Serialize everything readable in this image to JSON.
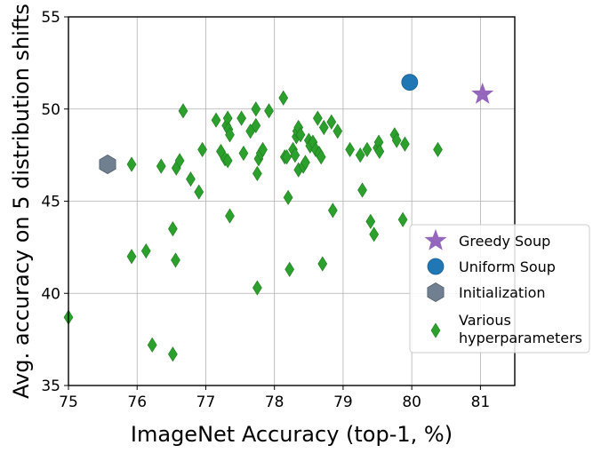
{
  "chart_data": {
    "type": "scatter",
    "xlabel": "ImageNet Accuracy (top-1, %)",
    "ylabel": "Avg. accuracy on 5 distribution shifts",
    "xlim": [
      75,
      81.5
    ],
    "ylim": [
      35,
      55
    ],
    "xticks": [
      "75",
      "76",
      "77",
      "78",
      "79",
      "80",
      "81"
    ],
    "yticks": [
      "35",
      "40",
      "45",
      "50",
      "55"
    ],
    "grid": true,
    "legend_position": "right",
    "legend_labels": {
      "greedy": "Greedy Soup",
      "uniform": "Uniform Soup",
      "init": "Initialization",
      "various_line1": "Various",
      "various_line2": "hyperparameters"
    },
    "colors": {
      "greedy": "#9467bd",
      "uniform": "#1f77b4",
      "init": "#708090",
      "various": "#2ca02c"
    },
    "series": [
      {
        "name": "Greedy Soup",
        "marker": "star",
        "points": [
          [
            81.03,
            50.8
          ]
        ]
      },
      {
        "name": "Uniform Soup",
        "marker": "circle",
        "points": [
          [
            79.97,
            51.45
          ]
        ]
      },
      {
        "name": "Initialization",
        "marker": "hexagon",
        "points": [
          [
            75.57,
            47.0
          ]
        ]
      },
      {
        "name": "Various hyperparameters",
        "marker": "thin_diamond",
        "points": [
          [
            75.0,
            38.7
          ],
          [
            75.92,
            47.0
          ],
          [
            75.92,
            42.0
          ],
          [
            76.13,
            42.3
          ],
          [
            76.22,
            37.2
          ],
          [
            76.35,
            46.9
          ],
          [
            76.52,
            43.5
          ],
          [
            76.52,
            36.7
          ],
          [
            76.56,
            41.8
          ],
          [
            76.57,
            46.8
          ],
          [
            76.62,
            47.2
          ],
          [
            76.67,
            49.9
          ],
          [
            76.78,
            46.2
          ],
          [
            76.9,
            45.5
          ],
          [
            76.95,
            47.8
          ],
          [
            77.15,
            49.4
          ],
          [
            77.22,
            47.7
          ],
          [
            77.28,
            47.3
          ],
          [
            77.32,
            47.2
          ],
          [
            77.3,
            49.1
          ],
          [
            77.32,
            49.5
          ],
          [
            77.33,
            48.9
          ],
          [
            77.35,
            48.6
          ],
          [
            77.35,
            44.2
          ],
          [
            77.52,
            49.5
          ],
          [
            77.55,
            47.6
          ],
          [
            77.65,
            48.8
          ],
          [
            77.73,
            49.1
          ],
          [
            77.73,
            50.0
          ],
          [
            77.75,
            46.5
          ],
          [
            77.75,
            40.3
          ],
          [
            77.77,
            47.3
          ],
          [
            77.8,
            47.6
          ],
          [
            77.83,
            47.8
          ],
          [
            77.92,
            49.9
          ],
          [
            78.13,
            50.6
          ],
          [
            78.15,
            47.4
          ],
          [
            78.18,
            47.4
          ],
          [
            78.2,
            45.2
          ],
          [
            78.22,
            41.3
          ],
          [
            78.27,
            47.8
          ],
          [
            78.3,
            47.5
          ],
          [
            78.32,
            48.5
          ],
          [
            78.33,
            48.8
          ],
          [
            78.35,
            49.0
          ],
          [
            78.35,
            46.7
          ],
          [
            78.38,
            48.6
          ],
          [
            78.42,
            46.9
          ],
          [
            78.45,
            47.1
          ],
          [
            78.5,
            48.3
          ],
          [
            78.52,
            48.0
          ],
          [
            78.56,
            48.2
          ],
          [
            78.6,
            47.8
          ],
          [
            78.63,
            49.5
          ],
          [
            78.65,
            47.6
          ],
          [
            78.68,
            47.4
          ],
          [
            78.7,
            41.6
          ],
          [
            78.72,
            49.0
          ],
          [
            78.83,
            49.3
          ],
          [
            78.85,
            44.5
          ],
          [
            78.92,
            48.8
          ],
          [
            79.1,
            47.8
          ],
          [
            79.25,
            47.5
          ],
          [
            79.28,
            45.6
          ],
          [
            79.35,
            47.8
          ],
          [
            79.4,
            43.9
          ],
          [
            79.45,
            43.2
          ],
          [
            79.5,
            47.9
          ],
          [
            79.52,
            48.2
          ],
          [
            79.53,
            47.7
          ],
          [
            79.75,
            48.6
          ],
          [
            79.78,
            48.3
          ],
          [
            79.87,
            44.0
          ],
          [
            79.9,
            48.1
          ],
          [
            80.38,
            47.8
          ]
        ]
      }
    ]
  }
}
